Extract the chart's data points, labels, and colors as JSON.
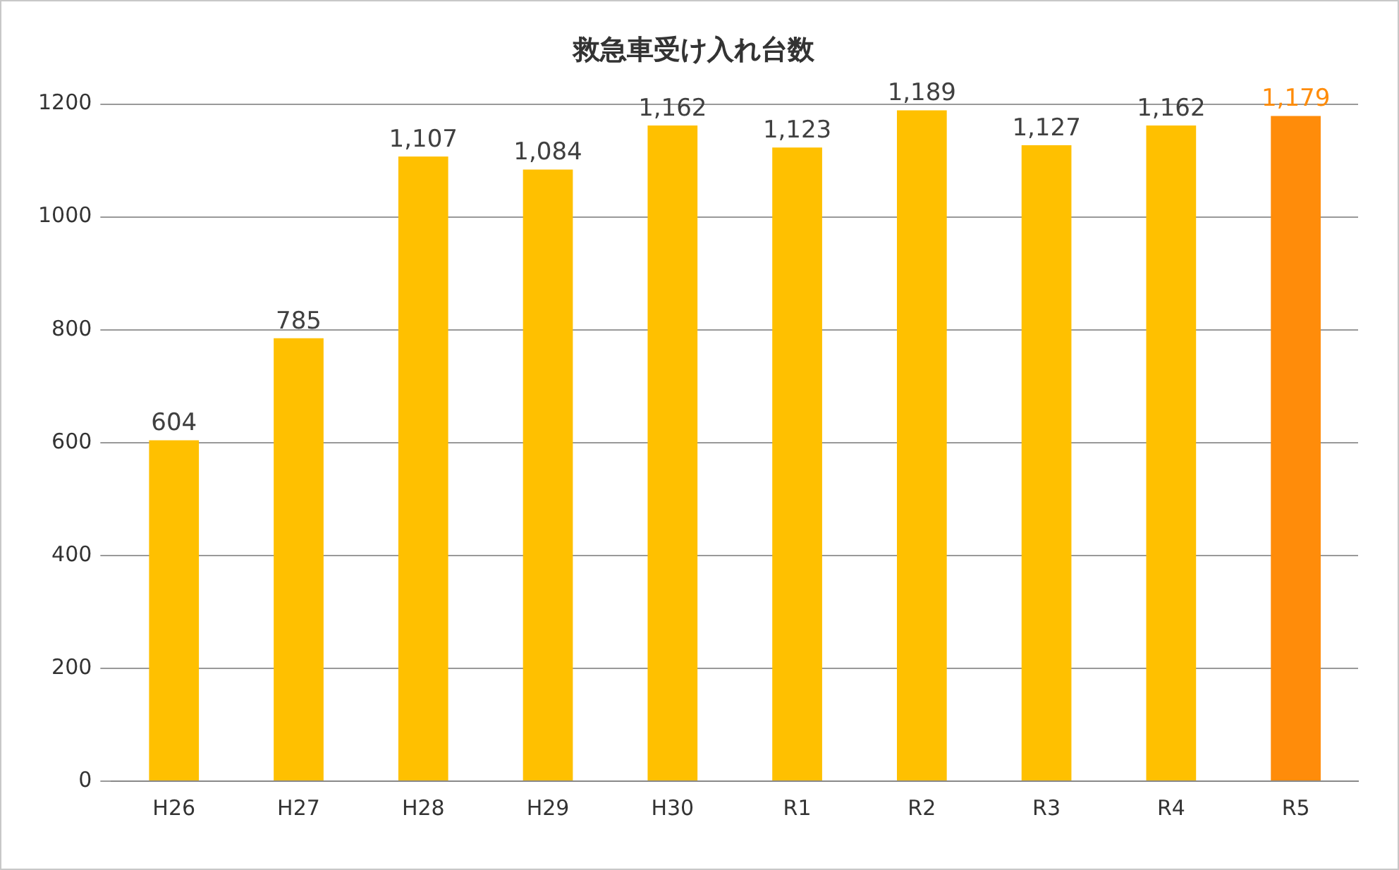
{
  "chart_data": {
    "type": "bar",
    "title": "救急車受け入れ台数",
    "categories": [
      "H26",
      "H27",
      "H28",
      "H29",
      "H30",
      "R1",
      "R2",
      "R3",
      "R4",
      "R5"
    ],
    "values": [
      604,
      785,
      1107,
      1084,
      1162,
      1123,
      1189,
      1127,
      1162,
      1179
    ],
    "colors": [
      "#ffc000",
      "#ffc000",
      "#ffc000",
      "#ffc000",
      "#ffc000",
      "#ffc000",
      "#ffc000",
      "#ffc000",
      "#ffc000",
      "#ff8c0a"
    ],
    "value_labels": [
      "604",
      "785",
      "1,107",
      "1,084",
      "1,162",
      "1,123",
      "1,189",
      "1,127",
      "1,162",
      "1,179"
    ],
    "ylim": [
      0,
      1200
    ],
    "yticks": [
      0,
      200,
      400,
      600,
      800,
      1000,
      1200
    ],
    "grid": "y",
    "legend": false
  }
}
